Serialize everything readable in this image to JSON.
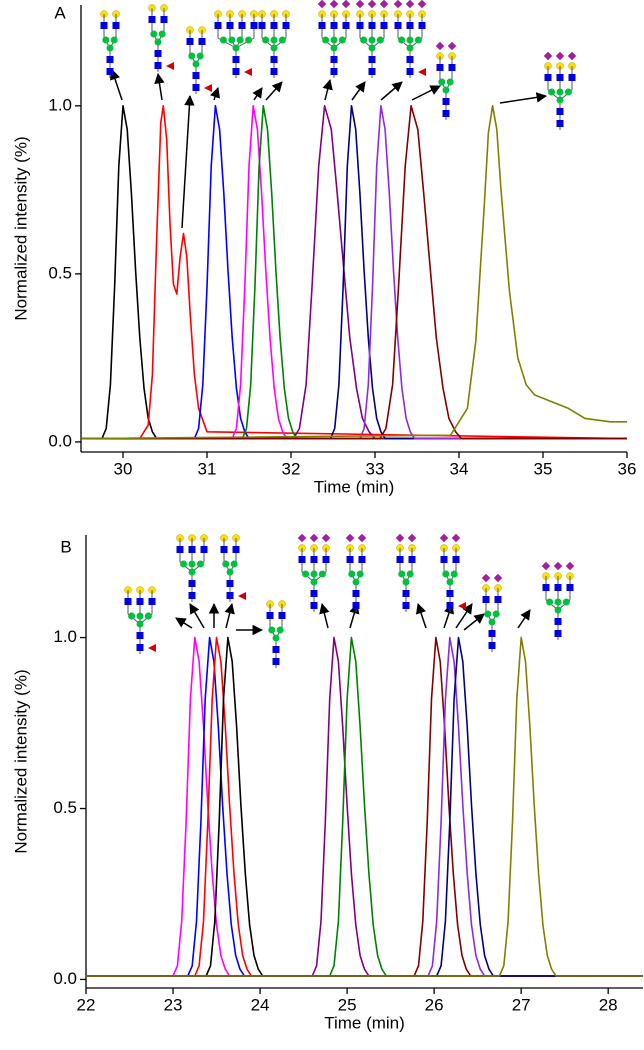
{
  "chart_data": [
    {
      "type": "line",
      "label": "A",
      "xlabel": "Time (min)",
      "ylabel": "Normalized intensity (%)",
      "xlim": [
        29.5,
        36
      ],
      "ylim": [
        -0.03,
        1.3
      ],
      "xticks": [
        30,
        31,
        32,
        33,
        34,
        35,
        36
      ],
      "yticks": [
        {
          "value": 0,
          "label": "0.0"
        },
        0.5,
        {
          "value": 1,
          "label": "1.0"
        }
      ],
      "series": [
        {
          "color": "#000000",
          "x": [
            29.5,
            29.7,
            29.75,
            29.8,
            29.85,
            29.9,
            29.95,
            30,
            30.05,
            30.1,
            30.15,
            30.2,
            30.25,
            30.3,
            30.35,
            30.4,
            36
          ],
          "values": [
            0.01,
            0.01,
            0.01,
            0.04,
            0.17,
            0.46,
            0.82,
            1,
            0.93,
            0.74,
            0.51,
            0.31,
            0.16,
            0.07,
            0.03,
            0.01,
            0.01
          ]
        },
        {
          "color": "#ff0000",
          "x": [
            29.5,
            30.2,
            30.3,
            30.35,
            30.4,
            30.45,
            30.48,
            30.52,
            30.56,
            30.6,
            30.64,
            30.68,
            30.72,
            30.76,
            30.8,
            30.85,
            30.9,
            31,
            36
          ],
          "values": [
            0.01,
            0.01,
            0.05,
            0.2,
            0.6,
            0.95,
            1,
            0.9,
            0.65,
            0.47,
            0.44,
            0.55,
            0.62,
            0.55,
            0.38,
            0.2,
            0.1,
            0.03,
            0.01
          ]
        },
        {
          "color": "#0000ff",
          "x": [
            29.5,
            30.8,
            30.85,
            30.9,
            30.95,
            31,
            31.05,
            31.1,
            31.15,
            31.2,
            31.25,
            31.3,
            31.35,
            31.4,
            31.45,
            31.5,
            36
          ],
          "values": [
            0.01,
            0.01,
            0.01,
            0.04,
            0.17,
            0.46,
            0.82,
            1,
            0.93,
            0.74,
            0.51,
            0.31,
            0.16,
            0.07,
            0.03,
            0.01,
            0.01
          ]
        },
        {
          "color": "#ff00ff",
          "x": [
            29.5,
            31.25,
            31.3,
            31.35,
            31.4,
            31.45,
            31.5,
            31.55,
            31.6,
            31.65,
            31.7,
            31.75,
            31.8,
            31.85,
            31.9,
            31.95,
            36
          ],
          "values": [
            0.01,
            0.01,
            0.01,
            0.04,
            0.17,
            0.46,
            0.82,
            1,
            0.93,
            0.74,
            0.51,
            0.31,
            0.16,
            0.07,
            0.03,
            0.01,
            0.01
          ]
        },
        {
          "color": "#008000",
          "x": [
            29.5,
            31.37,
            31.42,
            31.47,
            31.52,
            31.57,
            31.62,
            31.67,
            31.72,
            31.77,
            31.82,
            31.87,
            31.92,
            31.97,
            32.02,
            32.07,
            36
          ],
          "values": [
            0.01,
            0.01,
            0.01,
            0.04,
            0.17,
            0.46,
            0.82,
            1,
            0.93,
            0.74,
            0.51,
            0.31,
            0.16,
            0.07,
            0.03,
            0.01,
            0.01
          ]
        },
        {
          "color": "#800080",
          "x": [
            29.5,
            31.95,
            32.03,
            32.1,
            32.18,
            32.25,
            32.33,
            32.4,
            32.48,
            32.55,
            32.63,
            32.7,
            32.78,
            32.85,
            32.93,
            33,
            36
          ],
          "values": [
            0.01,
            0.01,
            0.01,
            0.04,
            0.17,
            0.46,
            0.82,
            1,
            0.93,
            0.74,
            0.51,
            0.31,
            0.16,
            0.07,
            0.03,
            0.01,
            0.01
          ]
        },
        {
          "color": "#000080",
          "x": [
            29.5,
            32.42,
            32.47,
            32.52,
            32.57,
            32.62,
            32.67,
            32.72,
            32.77,
            32.82,
            32.87,
            32.92,
            32.97,
            33.02,
            33.07,
            33.12,
            36
          ],
          "values": [
            0.01,
            0.01,
            0.01,
            0.04,
            0.17,
            0.46,
            0.82,
            1,
            0.93,
            0.74,
            0.51,
            0.31,
            0.16,
            0.07,
            0.03,
            0.01,
            0.01
          ]
        },
        {
          "color": "#8a2be2",
          "x": [
            29.5,
            32.77,
            32.82,
            32.87,
            32.92,
            32.97,
            33.02,
            33.07,
            33.12,
            33.17,
            33.22,
            33.27,
            33.32,
            33.37,
            33.42,
            33.47,
            36
          ],
          "values": [
            0.01,
            0.01,
            0.01,
            0.04,
            0.17,
            0.46,
            0.82,
            1,
            0.93,
            0.74,
            0.51,
            0.31,
            0.16,
            0.07,
            0.03,
            0.01,
            0.01
          ]
        },
        {
          "color": "#800000",
          "x": [
            29.5,
            32.98,
            33.06,
            33.13,
            33.21,
            33.28,
            33.36,
            33.43,
            33.51,
            33.58,
            33.66,
            33.73,
            33.81,
            33.88,
            33.96,
            34.03,
            36
          ],
          "values": [
            0.01,
            0.01,
            0.01,
            0.04,
            0.17,
            0.46,
            0.82,
            1,
            0.93,
            0.74,
            0.51,
            0.31,
            0.16,
            0.07,
            0.03,
            0.01,
            0.01
          ]
        },
        {
          "color": "#808000",
          "x": [
            29.5,
            33.9,
            34.1,
            34.2,
            34.3,
            34.35,
            34.4,
            34.45,
            34.5,
            34.6,
            34.7,
            34.8,
            34.9,
            35.1,
            35.3,
            35.5,
            35.8,
            36
          ],
          "values": [
            0.01,
            0.02,
            0.1,
            0.3,
            0.7,
            0.92,
            1,
            0.93,
            0.75,
            0.45,
            0.25,
            0.17,
            0.14,
            0.12,
            0.1,
            0.07,
            0.06,
            0.06
          ]
        }
      ]
    },
    {
      "type": "line",
      "label": "B",
      "xlabel": "Time (min)",
      "ylabel": "Normalized intensity (%)",
      "xlim": [
        22,
        28.4
      ],
      "ylim": [
        -0.025,
        1.3
      ],
      "xticks": [
        22,
        23,
        24,
        25,
        26,
        27,
        28
      ],
      "yticks": [
        {
          "value": 0,
          "label": "0.0"
        },
        0.5,
        {
          "value": 1,
          "label": "1.0"
        }
      ],
      "series": [
        {
          "color": "#ff00ff",
          "x": [
            22,
            22.95,
            23,
            23.05,
            23.1,
            23.15,
            23.2,
            23.25,
            23.3,
            23.35,
            23.4,
            23.45,
            23.5,
            23.55,
            23.6,
            23.65,
            28.4
          ],
          "values": [
            0.01,
            0.01,
            0.01,
            0.04,
            0.17,
            0.46,
            0.82,
            1,
            0.93,
            0.74,
            0.51,
            0.31,
            0.16,
            0.07,
            0.03,
            0.01,
            0.01
          ]
        },
        {
          "color": "#0000ff",
          "x": [
            22,
            23.12,
            23.17,
            23.22,
            23.27,
            23.32,
            23.37,
            23.42,
            23.47,
            23.52,
            23.57,
            23.62,
            23.67,
            23.72,
            23.77,
            23.82,
            28.4
          ],
          "values": [
            0.01,
            0.01,
            0.01,
            0.04,
            0.17,
            0.46,
            0.82,
            1,
            0.93,
            0.74,
            0.51,
            0.31,
            0.16,
            0.07,
            0.03,
            0.01,
            0.01
          ]
        },
        {
          "color": "#ff0000",
          "x": [
            22,
            23.2,
            23.25,
            23.3,
            23.35,
            23.4,
            23.45,
            23.5,
            23.55,
            23.6,
            23.65,
            23.7,
            23.75,
            23.8,
            23.85,
            23.9,
            28.4
          ],
          "values": [
            0.01,
            0.01,
            0.01,
            0.04,
            0.17,
            0.46,
            0.82,
            1,
            0.93,
            0.74,
            0.51,
            0.31,
            0.16,
            0.07,
            0.03,
            0.01,
            0.01
          ]
        },
        {
          "color": "#000000",
          "x": [
            22,
            23.33,
            23.38,
            23.43,
            23.48,
            23.53,
            23.58,
            23.63,
            23.68,
            23.73,
            23.78,
            23.83,
            23.88,
            23.93,
            23.98,
            24.03,
            28.4
          ],
          "values": [
            0.01,
            0.01,
            0.01,
            0.04,
            0.17,
            0.46,
            0.82,
            1,
            0.93,
            0.74,
            0.51,
            0.31,
            0.16,
            0.07,
            0.03,
            0.01,
            0.01
          ]
        },
        {
          "color": "#800080",
          "x": [
            22,
            24.55,
            24.6,
            24.65,
            24.7,
            24.75,
            24.8,
            24.85,
            24.9,
            24.95,
            25,
            25.05,
            25.1,
            25.15,
            25.2,
            25.25,
            28.4
          ],
          "values": [
            0.01,
            0.01,
            0.01,
            0.04,
            0.17,
            0.46,
            0.82,
            1,
            0.93,
            0.74,
            0.51,
            0.31,
            0.16,
            0.07,
            0.03,
            0.01,
            0.01
          ]
        },
        {
          "color": "#008000",
          "x": [
            22,
            24.75,
            24.8,
            24.85,
            24.9,
            24.95,
            25,
            25.05,
            25.1,
            25.15,
            25.2,
            25.25,
            25.3,
            25.35,
            25.4,
            25.45,
            28.4
          ],
          "values": [
            0.01,
            0.01,
            0.01,
            0.04,
            0.17,
            0.46,
            0.82,
            1,
            0.93,
            0.74,
            0.51,
            0.31,
            0.16,
            0.07,
            0.03,
            0.01,
            0.01
          ]
        },
        {
          "color": "#800000",
          "x": [
            22,
            25.72,
            25.77,
            25.82,
            25.87,
            25.92,
            25.97,
            26.02,
            26.07,
            26.12,
            26.17,
            26.22,
            26.27,
            26.32,
            26.37,
            26.42,
            28.4
          ],
          "values": [
            0.01,
            0.01,
            0.01,
            0.04,
            0.17,
            0.46,
            0.82,
            1,
            0.93,
            0.74,
            0.51,
            0.31,
            0.16,
            0.07,
            0.03,
            0.01,
            0.01
          ]
        },
        {
          "color": "#8a2be2",
          "x": [
            22,
            25.88,
            25.93,
            25.98,
            26.03,
            26.08,
            26.13,
            26.18,
            26.23,
            26.28,
            26.33,
            26.38,
            26.43,
            26.48,
            26.53,
            26.58,
            28.4
          ],
          "values": [
            0.01,
            0.01,
            0.01,
            0.04,
            0.17,
            0.46,
            0.82,
            1,
            0.93,
            0.74,
            0.51,
            0.31,
            0.16,
            0.07,
            0.03,
            0.01,
            0.01
          ]
        },
        {
          "color": "#000080",
          "x": [
            22,
            25.98,
            26.03,
            26.08,
            26.13,
            26.18,
            26.23,
            26.28,
            26.33,
            26.38,
            26.43,
            26.48,
            26.53,
            26.58,
            26.63,
            26.68,
            28.4
          ],
          "values": [
            0.01,
            0.01,
            0.01,
            0.04,
            0.17,
            0.46,
            0.82,
            1,
            0.93,
            0.74,
            0.51,
            0.31,
            0.16,
            0.07,
            0.03,
            0.01,
            0.01
          ]
        },
        {
          "color": "#808000",
          "x": [
            22,
            26.7,
            26.75,
            26.8,
            26.85,
            26.9,
            26.95,
            27,
            27.05,
            27.1,
            27.15,
            27.2,
            27.25,
            27.3,
            27.35,
            27.4,
            28.4
          ],
          "values": [
            0.01,
            0.01,
            0.01,
            0.04,
            0.17,
            0.46,
            0.82,
            1,
            0.93,
            0.74,
            0.51,
            0.31,
            0.16,
            0.07,
            0.03,
            0.01,
            0.01
          ]
        }
      ]
    }
  ]
}
